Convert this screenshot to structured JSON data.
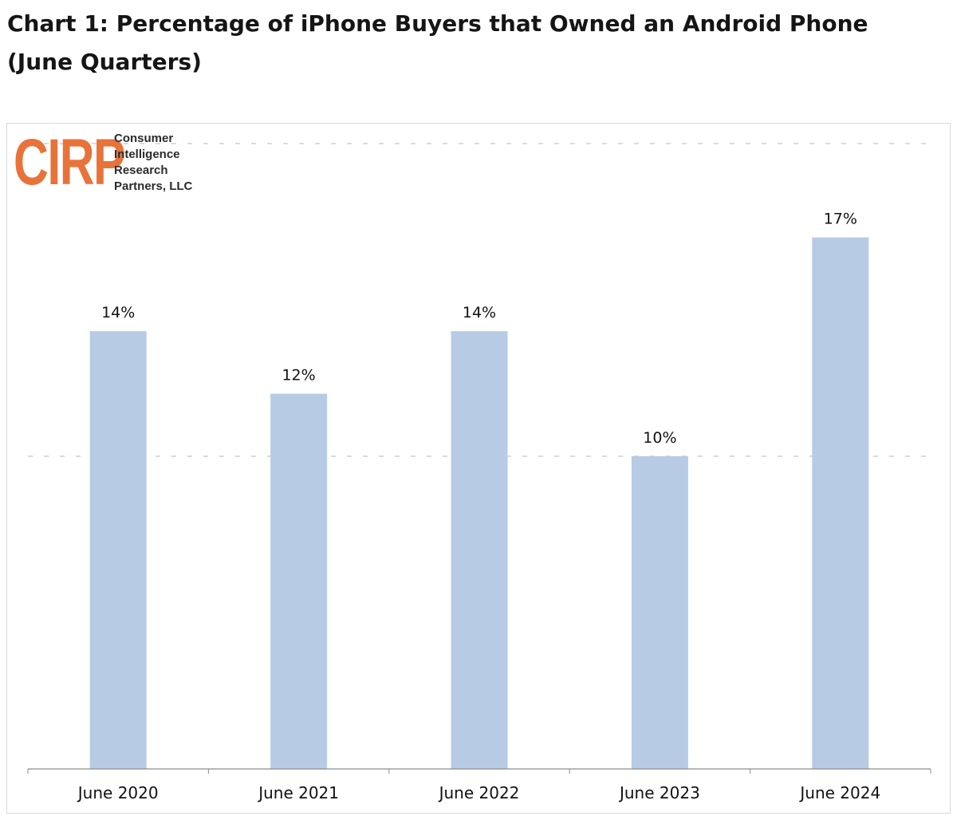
{
  "page": {
    "title": "Chart 1: Percentage of iPhone Buyers that Owned an Android Phone (June Quarters)"
  },
  "logo": {
    "mark": "CIRP",
    "lines": [
      "Consumer",
      "Intelligence",
      "Research",
      "Partners, LLC"
    ]
  },
  "chart_data": {
    "type": "bar",
    "categories": [
      "June 2020",
      "June 2021",
      "June 2022",
      "June 2023",
      "June 2024"
    ],
    "values": [
      14,
      12,
      14,
      10,
      17
    ],
    "data_labels": [
      "14%",
      "12%",
      "14%",
      "10%",
      "17%"
    ],
    "ylim": [
      0,
      20
    ],
    "grid": true,
    "legend": "none",
    "colors": {
      "bar": "#b8cbe4",
      "grid": "#9a9a9a",
      "axis": "#8c8c8c"
    }
  }
}
